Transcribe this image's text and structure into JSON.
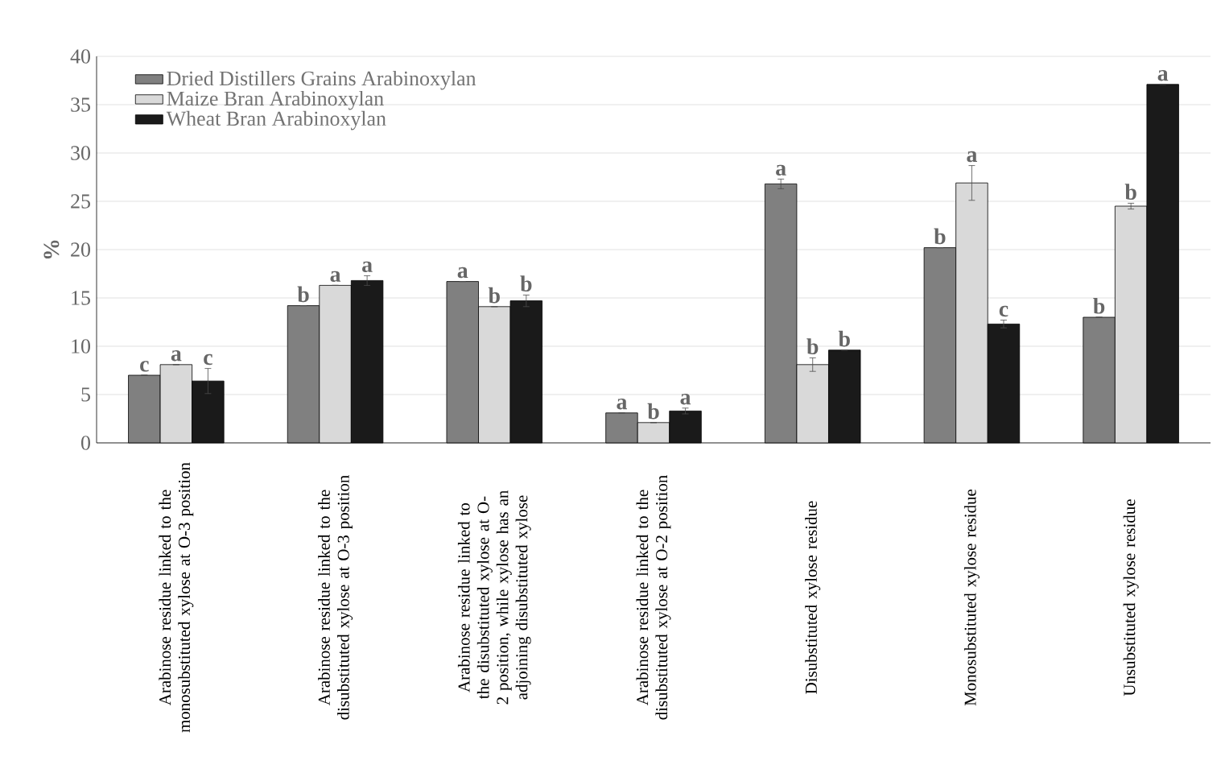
{
  "chart_data": {
    "type": "bar",
    "ylabel": "%",
    "categories": [
      "Arabinose residue linked to the monosubstituted xylose at O-3 position",
      "Arabinose residue linked to the disubstituted xylose at O-3 position",
      "Arabinose residue linked to the disubstituted xylose at O-2 position, while xylose has an adjoining disubstituted xylose",
      "Arabinose residue linked to the disubstituted xylose at O-2 position",
      "Disubstituted xylose residue",
      "Monosubstituted xylose residue",
      "Unsubstituted xylose residue"
    ],
    "series": [
      {
        "name": "Dried Distillers Grains Arabinoxylan",
        "color": "#808080",
        "values": [
          7.0,
          14.2,
          16.7,
          3.1,
          26.8,
          20.2,
          13.0
        ],
        "errors": [
          null,
          null,
          null,
          null,
          0.5,
          null,
          null
        ],
        "value_labels": [
          "c",
          "b",
          "a",
          "a",
          "a",
          "b",
          "b"
        ]
      },
      {
        "name": "Maize Bran Arabinoxylan",
        "color": "#d9d9d9",
        "values": [
          8.1,
          16.3,
          14.1,
          2.1,
          8.1,
          26.9,
          24.5
        ],
        "errors": [
          null,
          null,
          null,
          null,
          0.7,
          1.8,
          0.3
        ],
        "value_labels": [
          "a",
          "a",
          "b",
          "b",
          "b",
          "a",
          "b"
        ]
      },
      {
        "name": "Wheat Bran Arabinoxylan",
        "color": "#1a1a1a",
        "values": [
          6.4,
          16.8,
          14.7,
          3.3,
          9.6,
          12.3,
          37.1
        ],
        "errors": [
          1.3,
          0.5,
          0.6,
          0.3,
          null,
          0.4,
          null
        ],
        "value_labels": [
          "c",
          "a",
          "b",
          "a",
          "b",
          "c",
          "a"
        ]
      }
    ],
    "ylim": [
      0,
      40
    ],
    "yticks": [
      0,
      5,
      10,
      15,
      20,
      25,
      30,
      35,
      40
    ],
    "grid": "y",
    "legend": "top left"
  }
}
